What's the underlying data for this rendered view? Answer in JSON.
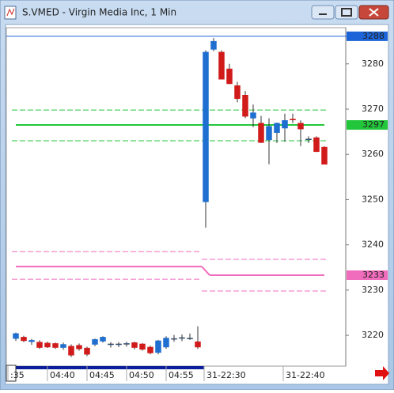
{
  "chart_data": {
    "type": "candlestick",
    "title": "S.VMED - Virgin Media Inc, 1 Min",
    "x": [
      1,
      2,
      3,
      4,
      5,
      6,
      7,
      8,
      9,
      10,
      11,
      12,
      13,
      14,
      15,
      16,
      17,
      18,
      19,
      20,
      21,
      22,
      23,
      24,
      25,
      26,
      27,
      28,
      29,
      30,
      31,
      32,
      33,
      34,
      35,
      36,
      37,
      38,
      39,
      40
    ],
    "open": [
      3219.3,
      3219.6,
      3218.6,
      3218.5,
      3218.3,
      3218.2,
      3217.3,
      3217.6,
      3217.8,
      3217.2,
      3218.0,
      3218.7,
      3218.1,
      3218.1,
      3218.2,
      3218.4,
      3218.1,
      3217.4,
      3216.2,
      3217.4,
      3219.3,
      3219.5,
      3219.4,
      3218.6,
      3249.5,
      3283.2,
      3282.6,
      3278.9,
      3275.2,
      3273.1,
      3268.0,
      3266.9,
      3263.2,
      3264.8,
      3265.8,
      3267.8,
      3266.9,
      3263.4,
      3263.7,
      3261.6
    ],
    "high": [
      3220.6,
      3219.9,
      3219.2,
      3218.9,
      3218.6,
      3218.4,
      3218.4,
      3218.0,
      3218.2,
      3217.5,
      3219.3,
      3219.8,
      3218.5,
      3218.5,
      3218.6,
      3218.6,
      3218.3,
      3217.7,
      3219.0,
      3219.8,
      3220.1,
      3220.2,
      3220.4,
      3222.0,
      3283.0,
      3285.7,
      3283.0,
      3280.0,
      3276.0,
      3274.0,
      3271.0,
      3268.5,
      3268.0,
      3267.0,
      3269.0,
      3269.0,
      3267.5,
      3264.0,
      3264.0,
      3261.8
    ],
    "low": [
      3218.8,
      3218.5,
      3217.9,
      3217.0,
      3217.2,
      3217.0,
      3216.8,
      3215.2,
      3216.6,
      3215.4,
      3217.6,
      3218.4,
      3217.3,
      3217.4,
      3217.5,
      3216.9,
      3216.6,
      3215.8,
      3215.8,
      3217.0,
      3218.6,
      3218.7,
      3219.0,
      3217.0,
      3243.8,
      3282.8,
      3276.6,
      3275.5,
      3271.5,
      3268.0,
      3266.0,
      3262.5,
      3257.8,
      3262.5,
      3262.8,
      3266.9,
      3261.8,
      3262.5,
      3260.5,
      3257.8
    ],
    "close": [
      3220.4,
      3218.8,
      3218.9,
      3217.3,
      3217.4,
      3217.3,
      3218.0,
      3215.6,
      3217.0,
      3215.8,
      3219.1,
      3219.6,
      3218.1,
      3218.1,
      3218.2,
      3217.3,
      3216.9,
      3216.1,
      3218.8,
      3219.4,
      3219.3,
      3219.5,
      3219.4,
      3217.4,
      3282.6,
      3285.0,
      3276.6,
      3275.6,
      3272.3,
      3268.4,
      3269.2,
      3262.6,
      3266.2,
      3266.9,
      3267.5,
      3267.6,
      3265.6,
      3263.4,
      3260.6,
      3257.8
    ],
    "up_color": "#1f6fd1",
    "down_color": "#d11a1a",
    "xlim": [
      -0.2,
      42.7
    ],
    "xticks": [
      {
        "value": 0,
        "label": ":35"
      },
      {
        "value": 5,
        "label": "04:40"
      },
      {
        "value": 10,
        "label": "04:45"
      },
      {
        "value": 15,
        "label": "04:50"
      },
      {
        "value": 20,
        "label": "04:55"
      },
      {
        "value": 24.8,
        "label": "31-22:30"
      },
      {
        "value": 34.8,
        "label": "31-22:40"
      }
    ],
    "ylim": [
      3213.2,
      3288
    ],
    "yticks": [
      3220,
      3230,
      3240,
      3250,
      3260,
      3270,
      3280
    ],
    "split_x": 24.5,
    "levels": [
      {
        "color": "#1c64d8",
        "style": "solid",
        "values": [
          3286.1
        ],
        "tag": "3288"
      },
      {
        "color": "#22c63a",
        "style": "dashed",
        "values": [
          3269.8
        ]
      },
      {
        "color": "#22c63a",
        "style": "solid",
        "values": [
          3266.5
        ],
        "tag": "3297"
      },
      {
        "color": "#22c63a",
        "style": "dashed",
        "values": [
          3263.0
        ]
      },
      {
        "color": "#f06cbc",
        "style": "dashed",
        "values": [
          3238.5,
          3236.8
        ]
      },
      {
        "color": "#f06cbc",
        "style": "solid",
        "values": [
          3235.2,
          3233.3
        ],
        "tag": "3233"
      },
      {
        "color": "#f06cbc",
        "style": "dashed",
        "values": [
          3232.4,
          3229.8
        ]
      }
    ]
  }
}
